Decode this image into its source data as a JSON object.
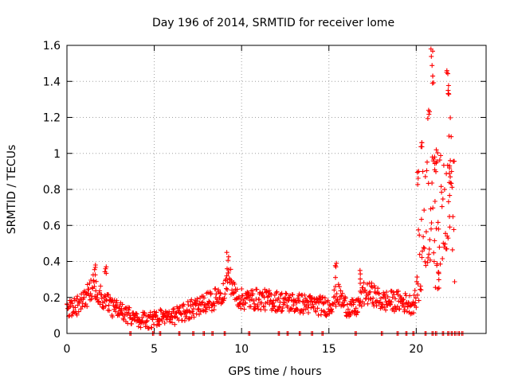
{
  "chart_data": {
    "type": "scatter",
    "title": "Day 196 of 2014, SRMTID for receiver lome",
    "xlabel": "GPS time / hours",
    "ylabel": "SRMTID / TECUs",
    "xlim": [
      0,
      24
    ],
    "ylim": [
      0,
      1.6
    ],
    "xticks": [
      0,
      5,
      10,
      15,
      20
    ],
    "xtick_labels": [
      "0",
      "5",
      "10",
      "15",
      "20"
    ],
    "yticks": [
      0,
      0.2,
      0.4,
      0.6,
      0.8,
      1.0,
      1.2,
      1.4,
      1.6
    ],
    "ytick_labels": [
      "0",
      "0.2",
      "0.4",
      "0.6",
      "0.8",
      "1",
      "1.2",
      "1.4",
      "1.6"
    ],
    "grid": true,
    "marker": "+",
    "color": "#ff0000",
    "series": [
      {
        "name": "SRMTID",
        "profile": [
          [
            0.0,
            0.14
          ],
          [
            0.5,
            0.15
          ],
          [
            1.0,
            0.19
          ],
          [
            1.5,
            0.26
          ],
          [
            2.0,
            0.2
          ],
          [
            2.5,
            0.15
          ],
          [
            3.0,
            0.13
          ],
          [
            3.5,
            0.1
          ],
          [
            4.0,
            0.08
          ],
          [
            4.5,
            0.07
          ],
          [
            5.0,
            0.08
          ],
          [
            5.5,
            0.09
          ],
          [
            6.0,
            0.09
          ],
          [
            6.5,
            0.11
          ],
          [
            7.0,
            0.13
          ],
          [
            7.5,
            0.15
          ],
          [
            8.0,
            0.17
          ],
          [
            8.5,
            0.19
          ],
          [
            9.0,
            0.24
          ],
          [
            9.3,
            0.32
          ],
          [
            9.6,
            0.22
          ],
          [
            10.0,
            0.19
          ],
          [
            11.0,
            0.19
          ],
          [
            12.0,
            0.18
          ],
          [
            13.0,
            0.17
          ],
          [
            14.0,
            0.16
          ],
          [
            15.0,
            0.15
          ],
          [
            15.5,
            0.22
          ],
          [
            16.0,
            0.15
          ],
          [
            16.5,
            0.13
          ],
          [
            17.0,
            0.22
          ],
          [
            17.5,
            0.22
          ],
          [
            18.0,
            0.18
          ],
          [
            19.0,
            0.18
          ],
          [
            19.8,
            0.16
          ],
          [
            20.0,
            0.2
          ],
          [
            20.2,
            0.4
          ],
          [
            20.5,
            0.7
          ],
          [
            20.8,
            0.7
          ],
          [
            21.2,
            0.55
          ],
          [
            21.6,
            0.75
          ],
          [
            22.0,
            0.9
          ],
          [
            22.2,
            0.6
          ]
        ],
        "peaks": [
          {
            "x": 1.6,
            "y": 0.38
          },
          {
            "x": 2.2,
            "y": 0.37
          },
          {
            "x": 9.2,
            "y": 0.45
          },
          {
            "x": 15.4,
            "y": 0.39
          },
          {
            "x": 16.8,
            "y": 0.35
          },
          {
            "x": 20.1,
            "y": 0.9
          },
          {
            "x": 20.3,
            "y": 1.06
          },
          {
            "x": 20.7,
            "y": 1.24
          },
          {
            "x": 20.9,
            "y": 1.58
          },
          {
            "x": 20.95,
            "y": 1.43
          },
          {
            "x": 21.05,
            "y": 0.98
          },
          {
            "x": 21.3,
            "y": 0.34
          },
          {
            "x": 21.2,
            "y": 1.02
          },
          {
            "x": 21.8,
            "y": 1.46
          },
          {
            "x": 21.85,
            "y": 1.35
          },
          {
            "x": 21.9,
            "y": 0.96
          },
          {
            "x": 21.95,
            "y": 0.87
          }
        ],
        "zeros": [
          3.6,
          4.9,
          5.3,
          6.4,
          7.2,
          7.8,
          8.3,
          9.0,
          10.4,
          12.1,
          12.6,
          13.3,
          14.0,
          14.6,
          16.5,
          18.0,
          18.9,
          19.4,
          19.8,
          20.5,
          20.9,
          21.1,
          21.5,
          21.8,
          22.0,
          22.2,
          22.4,
          22.6
        ]
      }
    ]
  }
}
